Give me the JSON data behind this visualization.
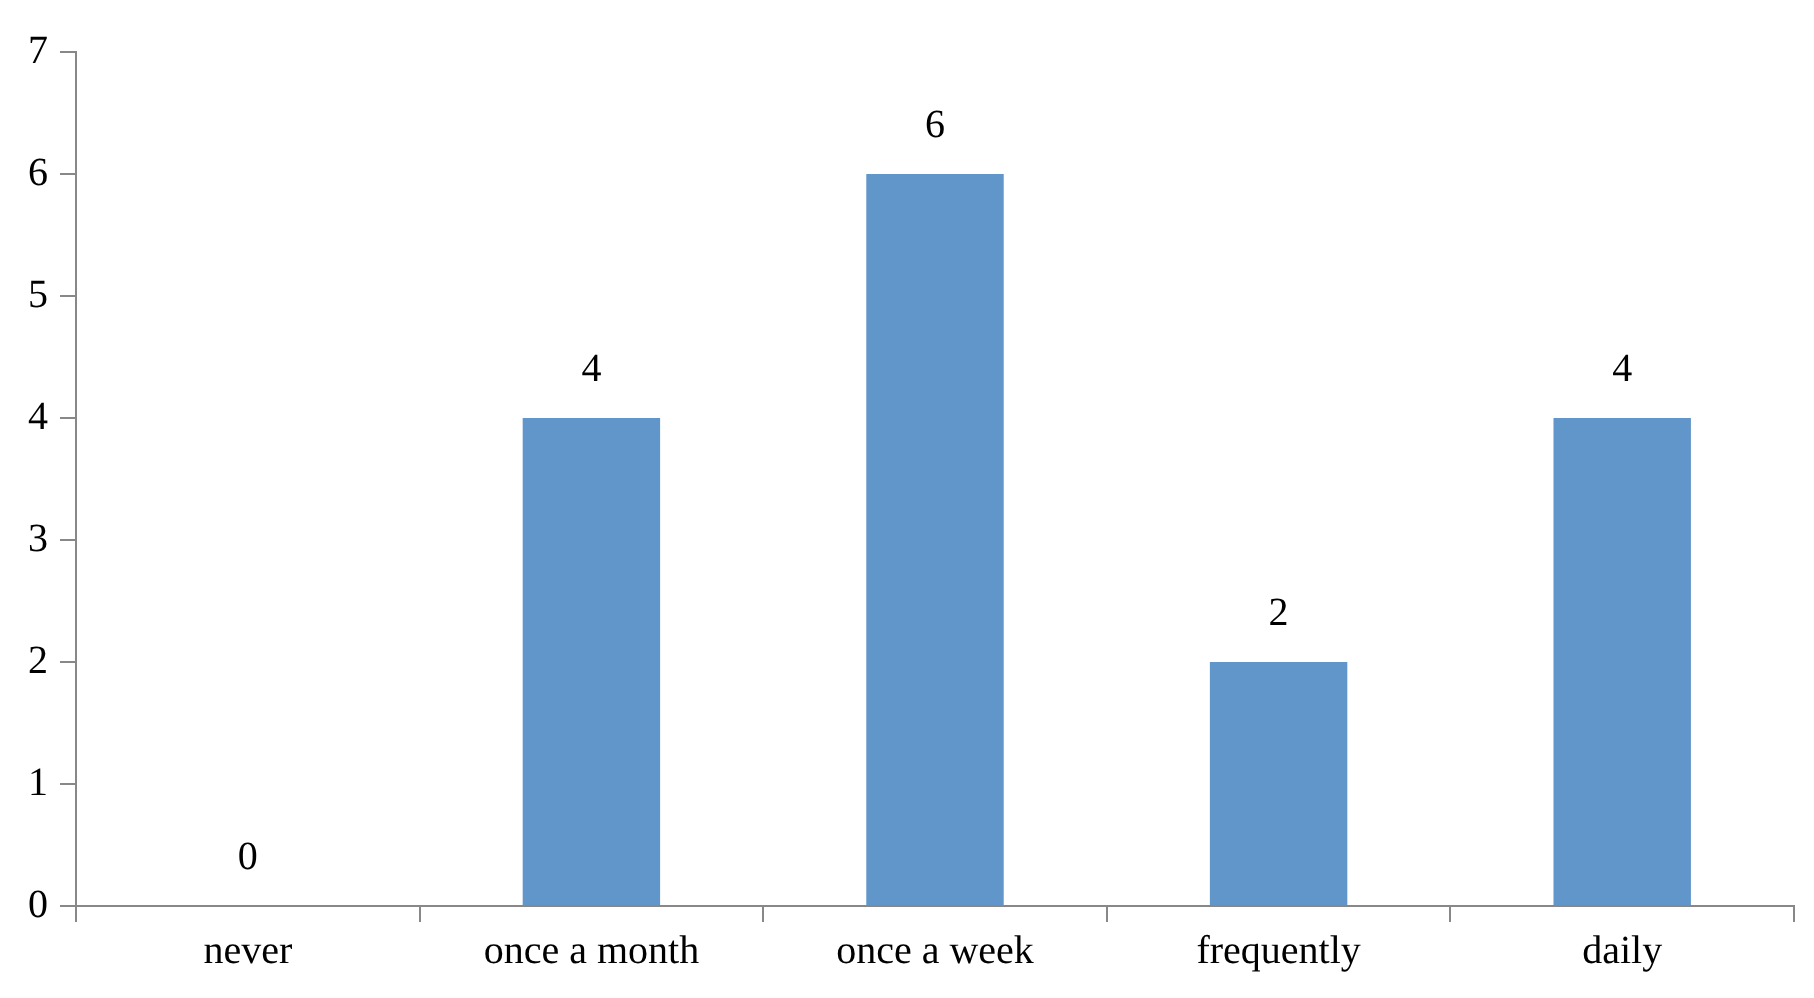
{
  "chart_data": {
    "type": "bar",
    "categories": [
      "never",
      "once a month",
      "once a week",
      "frequently",
      "daily"
    ],
    "values": [
      0,
      4,
      6,
      2,
      4
    ],
    "color": "#6096c9",
    "ylim": [
      0,
      7
    ],
    "yticks": [
      0,
      1,
      2,
      3,
      4,
      5,
      6,
      7
    ],
    "grid": false,
    "legend": false,
    "data_labels": true
  }
}
